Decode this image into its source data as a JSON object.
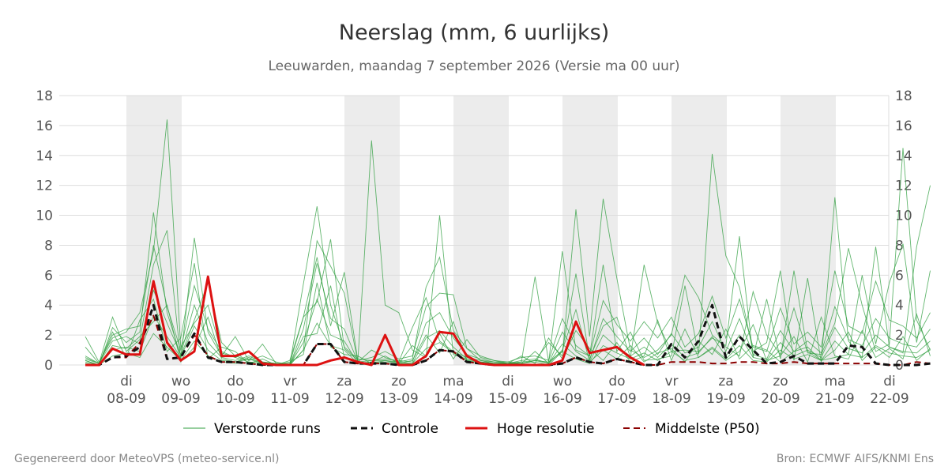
{
  "title": "Neerslag (mm, 6 uurlijks)",
  "subtitle": "Leeuwarden, maandag  7 september 2026 (Versie ma 00 uur)",
  "footer": {
    "left": "Gegenereerd door MeteoVPS (meteo-service.nl)",
    "right": "Bron: ECMWF AIFS/KNMI Ens"
  },
  "colors": {
    "ensemble": "#2e9e3e",
    "control": "#111111",
    "high_res": "#dd1111",
    "median": "#8b0000",
    "weekend_band": "#ececec",
    "grid": "#dddddd"
  },
  "chart_data": {
    "type": "line",
    "x_unit": "date (6-hour steps)",
    "x_start": "2026-09-07 12:00",
    "x_step_hours": 6,
    "ylim": [
      0,
      18
    ],
    "y_ticks": [
      0,
      2,
      4,
      6,
      8,
      10,
      12,
      14,
      16,
      18
    ],
    "grid": true,
    "legend_position": "bottom",
    "shaded_days": [
      "08-09",
      "12-09",
      "14-09",
      "16-09",
      "18-09",
      "20-09"
    ],
    "x_ticks": [
      {
        "day": "di",
        "date": "08-09"
      },
      {
        "day": "wo",
        "date": "09-09"
      },
      {
        "day": "do",
        "date": "10-09"
      },
      {
        "day": "vr",
        "date": "11-09"
      },
      {
        "day": "za",
        "date": "12-09"
      },
      {
        "day": "zo",
        "date": "13-09"
      },
      {
        "day": "ma",
        "date": "14-09"
      },
      {
        "day": "di",
        "date": "15-09"
      },
      {
        "day": "wo",
        "date": "16-09"
      },
      {
        "day": "do",
        "date": "17-09"
      },
      {
        "day": "vr",
        "date": "18-09"
      },
      {
        "day": "za",
        "date": "19-09"
      },
      {
        "day": "zo",
        "date": "20-09"
      },
      {
        "day": "ma",
        "date": "21-09"
      },
      {
        "day": "di",
        "date": "22-09"
      }
    ],
    "series": [
      {
        "name": "Hoge resolutie",
        "style": "solid",
        "values": [
          0,
          0,
          1.1,
          0.7,
          0.7,
          5.6,
          1.5,
          0.3,
          0.9,
          5.9,
          0.6,
          0.6,
          0.9,
          0.1,
          0,
          0,
          0,
          0,
          0.3,
          0.5,
          0.2,
          0,
          2,
          0,
          0,
          0.6,
          2.2,
          2.1,
          0.6,
          0.1,
          0,
          0,
          0,
          0,
          0,
          0.3,
          2.9,
          0.8,
          1,
          1.2,
          0.5,
          0
        ]
      },
      {
        "name": "Controle",
        "style": "dashed",
        "values": [
          0,
          0,
          0.5,
          0.6,
          1.2,
          4.0,
          0.4,
          0.5,
          2.1,
          0.5,
          0.2,
          0.2,
          0.1,
          0,
          0,
          0,
          0,
          1.4,
          1.4,
          0.2,
          0.1,
          0.1,
          0.1,
          0,
          0,
          0.3,
          1,
          0.9,
          0.2,
          0.1,
          0,
          0,
          0,
          0,
          0,
          0.1,
          0.5,
          0.2,
          0.1,
          0.4,
          0.2,
          0,
          0,
          1.4,
          0.5,
          1.6,
          4.0,
          0.5,
          1.9,
          1.0,
          0.1,
          0.2,
          0.6,
          0.1,
          0.1,
          0.1,
          1.3,
          1.2,
          0.1,
          0,
          0,
          0,
          0.1
        ]
      },
      {
        "name": "Middelste (P50)",
        "style": "dashed",
        "values": [
          0,
          0,
          0.5,
          0.5,
          1.5,
          3.3,
          0.4,
          0.5,
          2.0,
          0.6,
          0.2,
          0.2,
          0.1,
          0,
          0,
          0,
          0,
          1.4,
          1.4,
          0.2,
          0.1,
          0.1,
          0.1,
          0,
          0,
          0.3,
          1,
          0.9,
          0.2,
          0.1,
          0,
          0,
          0,
          0,
          0,
          0.1,
          0.5,
          0.2,
          0.1,
          0.4,
          0.2,
          0,
          0,
          0.2,
          0.2,
          0.2,
          0.1,
          0.1,
          0.2,
          0.2,
          0.1,
          0.1,
          0.2,
          0.1,
          0.1,
          0.1,
          0.1,
          0.1,
          0.1,
          0,
          0,
          0.2,
          0.1
        ]
      },
      {
        "name": "Verstoorde runs",
        "style": "thin",
        "members": [
          [
            0.3,
            0,
            2.5,
            1.5,
            2.2,
            10.2,
            3.5,
            0.6,
            3.0,
            5.5,
            1.5,
            0.6,
            0.3,
            0.6,
            0.2,
            0,
            5.4,
            10.6,
            4.0,
            1.2,
            0.4,
            0.3,
            0.3,
            0.2,
            2.5,
            4.5,
            1.6,
            0.9,
            0.5,
            0.3,
            0.2,
            0.2,
            0.1,
            0.3,
            1.5,
            0.6,
            10.4,
            1.9,
            11.1,
            5.8,
            1.0,
            0.5,
            1.0,
            2.0,
            6.0,
            4.5,
            2.0,
            1.2,
            0.6,
            4.9,
            2.0,
            0.7,
            3.8,
            0.8,
            0.7,
            2.8,
            7.8,
            4.0,
            0.9,
            1.4,
            14.5,
            3.0,
            1.0
          ],
          [
            1.9,
            0.2,
            1.8,
            2.2,
            3.5,
            7.6,
            16.4,
            1.2,
            2.8,
            4.0,
            0.8,
            0.5,
            0.2,
            0.1,
            0,
            0.3,
            3.2,
            7.2,
            2.6,
            6.2,
            0.3,
            15.0,
            4.0,
            3.5,
            1.0,
            0.5,
            10.0,
            0.7,
            0.4,
            0.2,
            0.1,
            0.1,
            0.1,
            0.3,
            0.2,
            7.6,
            1.0,
            0.6,
            6.7,
            0.9,
            2.2,
            0.3,
            0.4,
            0.6,
            5.3,
            0.7,
            14.1,
            7.3,
            5.2,
            0.9,
            1.5,
            6.3,
            0.3,
            5.8,
            0.2,
            11.2,
            1.6,
            0.5,
            7.9,
            1.2,
            0.8,
            7.9,
            12.0
          ],
          [
            0.5,
            0.1,
            3.2,
            0.9,
            1.7,
            6.7,
            9.0,
            0.4,
            8.5,
            2.2,
            0.6,
            1.9,
            0.3,
            1.4,
            0.1,
            0,
            1.0,
            8.3,
            6.6,
            4.8,
            0.2,
            1.0,
            0.5,
            0.2,
            0.4,
            5.2,
            7.2,
            2.3,
            1.1,
            0.3,
            0.1,
            0.1,
            0.2,
            5.9,
            0.2,
            0.9,
            6.1,
            0.4,
            2.6,
            3.2,
            0.5,
            6.7,
            2.8,
            0.9,
            1.0,
            0.9,
            1.8,
            1.3,
            8.6,
            0.5,
            4.4,
            0.4,
            6.3,
            0.9,
            0.3,
            0.5,
            0.7,
            6.0,
            1.4,
            5.5,
            8.1,
            1.5,
            6.3
          ],
          [
            1.2,
            0.1,
            2.0,
            2.4,
            2.6,
            8.0,
            3.9,
            1.0,
            5.3,
            2.4,
            0.9,
            0.5,
            0.9,
            0.2,
            0.1,
            0.1,
            3.2,
            4.2,
            8.4,
            1.1,
            0.3,
            0.5,
            0.9,
            0.4,
            0.6,
            3.9,
            4.8,
            4.7,
            1.1,
            0.6,
            0.3,
            0.2,
            0.5,
            0.6,
            0.3,
            3.1,
            1.3,
            0.6,
            4.3,
            2.7,
            1.6,
            2.9,
            1.8,
            3.2,
            1.2,
            2.1,
            4.6,
            1.8,
            4.4,
            1.2,
            0.9,
            3.8,
            1.4,
            2.2,
            1.2,
            6.3,
            2.6,
            2.1,
            5.6,
            3.0,
            2.6,
            1.8,
            3.5
          ],
          [
            0.4,
            0.1,
            1.6,
            1.9,
            1.4,
            5.0,
            2.8,
            0.7,
            4.0,
            1.5,
            0.5,
            0.3,
            0.6,
            0.2,
            0.1,
            0,
            2.4,
            6.8,
            3.1,
            2.4,
            0.2,
            0.3,
            0.4,
            0.3,
            0.2,
            2.8,
            3.5,
            1.8,
            0.7,
            0.4,
            0.2,
            0.1,
            0.3,
            0.4,
            0.1,
            2.2,
            0.9,
            0.3,
            3.1,
            1.9,
            0.9,
            1.8,
            0.7,
            2.1,
            0.8,
            1.2,
            2.9,
            0.9,
            3.1,
            0.7,
            0.4,
            2.3,
            0.9,
            1.6,
            0.8,
            3.9,
            1.7,
            1.3,
            3.1,
            1.8,
            1.4,
            1.2,
            2.4
          ],
          [
            0.2,
            0,
            1.0,
            1.2,
            0.9,
            3.3,
            1.9,
            0.5,
            2.6,
            1.0,
            0.3,
            0.2,
            0.4,
            0.1,
            0,
            0,
            1.5,
            4.4,
            2.0,
            1.6,
            0.1,
            0.2,
            0.2,
            0.2,
            0.1,
            1.8,
            2.3,
            1.2,
            0.4,
            0.2,
            0.1,
            0.1,
            0.2,
            0.3,
            0.1,
            1.4,
            0.6,
            0.2,
            2.0,
            1.2,
            0.6,
            1.2,
            0.5,
            1.4,
            0.5,
            0.8,
            1.9,
            0.6,
            2.0,
            0.5,
            0.3,
            1.5,
            0.6,
            1.0,
            0.5,
            2.5,
            1.1,
            0.8,
            2.0,
            1.2,
            0.9,
            0.8,
            1.6
          ],
          [
            0.1,
            0,
            0.6,
            0.8,
            0.5,
            2.1,
            1.2,
            0.3,
            1.6,
            0.6,
            0.2,
            0.1,
            0.2,
            0.1,
            0,
            0,
            1.0,
            2.8,
            1.3,
            1.0,
            0.1,
            0.1,
            0.1,
            0.1,
            0.1,
            1.1,
            1.5,
            0.8,
            0.3,
            0.1,
            0.1,
            0,
            0.1,
            0.2,
            0,
            0.9,
            0.4,
            0.1,
            1.3,
            0.8,
            0.4,
            0.8,
            0.3,
            0.9,
            0.3,
            0.5,
            1.2,
            0.4,
            1.3,
            0.3,
            0.2,
            1.0,
            0.4,
            0.7,
            0.3,
            1.6,
            0.7,
            0.5,
            1.3,
            0.8,
            0.6,
            0.5,
            1.0
          ],
          [
            0.6,
            0.1,
            2.2,
            0.5,
            3.0,
            4.4,
            0.9,
            1.8,
            6.8,
            0.4,
            1.2,
            0.9,
            0.1,
            0.4,
            0,
            0.2,
            0.7,
            5.5,
            1.2,
            0.7,
            0.6,
            0.1,
            0.3,
            0.1,
            1.3,
            0.6,
            2.1,
            0.4,
            1.7,
            0.5,
            0.3,
            0.1,
            0.6,
            0.1,
            1.8,
            0.4,
            2.3,
            1.1,
            0.3,
            1.5,
            0.2,
            0.6,
            3.0,
            0.3,
            2.4,
            0.5,
            1.1,
            0.3,
            0.9,
            2.7,
            0.3,
            0.6,
            1.9,
            0.2,
            3.2,
            0.6,
            0.4,
            2.3,
            0.5,
            1.1,
            0.4,
            3.4,
            0.6
          ],
          [
            0.3,
            0,
            1.3,
            1.1,
            1.9,
            2.9,
            4.0,
            0.2,
            1.2,
            3.2,
            0.4,
            0.2,
            0.5,
            0.1,
            0.1,
            0,
            1.9,
            2.1,
            5.3,
            0.5,
            0.1,
            0.2,
            0.6,
            0.1,
            0.3,
            2.0,
            0.8,
            2.9,
            0.3,
            0.2,
            0.1,
            0.1,
            0.1,
            0.9,
            0.1,
            1.0,
            3.7,
            0.2,
            1.0,
            0.4,
            1.3,
            0.2,
            0.8,
            1.1,
            0.2,
            1.6,
            0.7,
            2.4,
            0.4,
            1.3,
            1.0,
            0.2,
            0.9,
            1.2,
            0.3,
            1.0,
            2.2,
            0.3,
            1.2,
            0.5,
            1.9,
            0.3,
            1.1
          ]
        ]
      }
    ],
    "legend": [
      "Verstoorde runs",
      "Controle",
      "Hoge resolutie",
      "Middelste (P50)"
    ]
  }
}
